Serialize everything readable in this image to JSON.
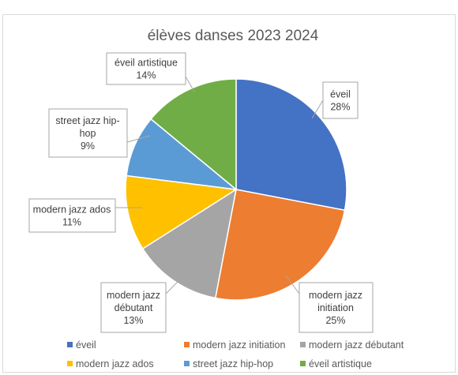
{
  "chart_data": {
    "type": "pie",
    "title": "élèves danses 2023 2024",
    "categories": [
      "éveil",
      "modern jazz initiation",
      "modern jazz débutant",
      "modern jazz ados",
      "street jazz hip-hop",
      "éveil artistique"
    ],
    "values": [
      28,
      25,
      13,
      11,
      9,
      14
    ],
    "value_unit": "%",
    "data_labels": [
      {
        "lines": [
          "éveil",
          "28%"
        ]
      },
      {
        "lines": [
          "modern jazz",
          "initiation",
          "25%"
        ]
      },
      {
        "lines": [
          "modern jazz",
          "débutant",
          "13%"
        ]
      },
      {
        "lines": [
          "modern jazz ados",
          "11%"
        ]
      },
      {
        "lines": [
          "street jazz hip-",
          "hop",
          "9%"
        ]
      },
      {
        "lines": [
          "éveil artistique",
          "14%"
        ]
      }
    ],
    "colors": [
      "#4472C4",
      "#ED7D31",
      "#A5A5A5",
      "#FFC000",
      "#5B9BD5",
      "#70AD47"
    ],
    "legend_position": "bottom"
  }
}
